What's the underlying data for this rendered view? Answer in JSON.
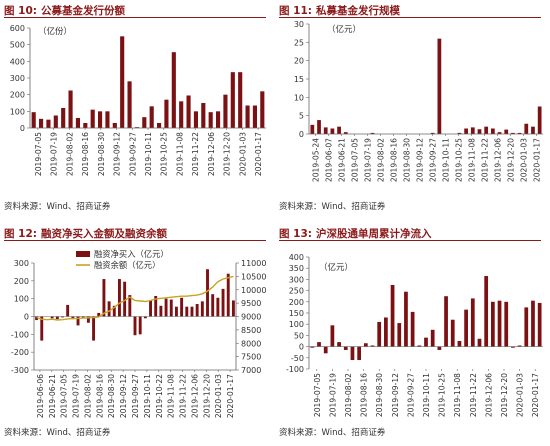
{
  "colors": {
    "bar": "#7b1113",
    "line": "#c9a227",
    "title": "#8b1a1a",
    "axis": "#666666"
  },
  "source_text": "资料来源：Wind、招商证券",
  "panels": [
    {
      "fig": "图 10:",
      "title": "公募基金发行份额"
    },
    {
      "fig": "图 11:",
      "title": "私募基金发行规模"
    },
    {
      "fig": "图 12:",
      "title": "融资净买入金额及融资余额"
    },
    {
      "fig": "图 13:",
      "title": "沪深股通单周累计净流入"
    }
  ],
  "chart_data": [
    {
      "type": "bar",
      "title": "公募基金发行份额",
      "unit_label": "（亿份）",
      "ylim": [
        0,
        600
      ],
      "yticks": [
        "0",
        "100",
        "200",
        "300",
        "400",
        "500",
        "600"
      ],
      "xticks": [
        "2019-07-05",
        "2019-07-19",
        "2019-08-02",
        "2019-08-16",
        "2019-08-30",
        "2019-09-12",
        "2019-09-27",
        "2019-10-11",
        "2019-10-25",
        "2019-11-08",
        "2019-11-22",
        "2019-12-06",
        "2019-12-20",
        "2020-01-03",
        "2020-01-17"
      ],
      "values": [
        95,
        55,
        50,
        75,
        120,
        225,
        60,
        30,
        110,
        100,
        100,
        30,
        550,
        280,
        5,
        65,
        130,
        30,
        170,
        455,
        160,
        195,
        100,
        150,
        95,
        100,
        200,
        335,
        335,
        135,
        135,
        220
      ]
    },
    {
      "type": "bar",
      "title": "私募基金发行规模",
      "unit_label": "（亿元）",
      "ylim": [
        0,
        30
      ],
      "yticks": [
        "0",
        "5",
        "10",
        "15",
        "20",
        "25",
        "30"
      ],
      "xticks": [
        "2019-05-24",
        "2019-06-07",
        "2019-06-21",
        "2019-07-05",
        "2019-07-19",
        "2019-08-02",
        "2019-08-16",
        "2019-08-30",
        "2019-09-12",
        "2019-09-27",
        "2019-10-11",
        "2019-10-25",
        "2019-11-08",
        "2019-11-22",
        "2019-12-06",
        "2019-12-20",
        "2020-01-03",
        "2020-01-17"
      ],
      "values": [
        2.5,
        3.8,
        1.8,
        1.5,
        2.0,
        0.5,
        0,
        0,
        0,
        0.3,
        0,
        0,
        0,
        0,
        0,
        0,
        0,
        0,
        0.3,
        26,
        0,
        0,
        0.3,
        1.5,
        1.8,
        1.3,
        2.0,
        1.5,
        0.5,
        1.2,
        0.3,
        0.3,
        2.8,
        2.0,
        7.5
      ]
    },
    {
      "type": "bar+line",
      "title": "融资净买入金额及融资余额",
      "series": [
        {
          "name": "融资净买入（亿元）",
          "type": "bar",
          "axis": "left",
          "values": [
            -20,
            -135,
            0,
            -10,
            -15,
            -5,
            65,
            -15,
            -50,
            -5,
            -35,
            -135,
            20,
            210,
            85,
            60,
            210,
            195,
            120,
            -105,
            -100,
            -10,
            90,
            115,
            60,
            100,
            95,
            55,
            105,
            55,
            55,
            70,
            85,
            265,
            125,
            105,
            155,
            240,
            90
          ]
        },
        {
          "name": "融资余额（亿元）",
          "type": "line",
          "axis": "right",
          "values": [
            8960,
            8900,
            8880,
            8900,
            8870,
            8880,
            8910,
            8920,
            8930,
            8940,
            8950,
            8960,
            8980,
            9120,
            9200,
            9340,
            9500,
            9600,
            9720,
            9600,
            9580,
            9560,
            9600,
            9650,
            9680,
            9700,
            9720,
            9740,
            9760,
            9760,
            9780,
            9800,
            9850,
            9950,
            10100,
            10300,
            10400,
            10450,
            10500
          ]
        }
      ],
      "ylim_left": [
        -300,
        300
      ],
      "yticks_left": [
        "-300",
        "-200",
        "-100",
        "0",
        "100",
        "200",
        "300"
      ],
      "ylim_right": [
        7000,
        11000
      ],
      "yticks_right": [
        "7000",
        "7500",
        "8000",
        "8500",
        "9000",
        "9500",
        "10000",
        "10500",
        "11000"
      ],
      "xticks": [
        "2019-06-06",
        "2019-06-21",
        "2019-07-05",
        "2019-07-19",
        "2019-08-02",
        "2019-08-16",
        "2019-08-30",
        "2019-09-12",
        "2019-09-27",
        "2019-10-11",
        "2019-10-22",
        "2019-11-08",
        "2019-11-22",
        "2019-12-06",
        "2019-12-20",
        "2020-01-03",
        "2020-01-17"
      ],
      "legend": "top-left"
    },
    {
      "type": "bar",
      "title": "沪深股通单周累计净流入",
      "unit_label": "（亿元）",
      "ylim": [
        -100,
        400
      ],
      "yticks": [
        "-100",
        "-50",
        "0",
        "50",
        "100",
        "150",
        "200",
        "250",
        "300",
        "350",
        "400"
      ],
      "xticks": [
        "2019-07-05",
        "2019-07-19",
        "2019-08-02",
        "2019-08-16",
        "2019-08-30",
        "2019-09-12",
        "2019-09-27",
        "2019-10-11",
        "2019-10-25",
        "2019-11-08",
        "2019-11-22",
        "2019-12-06",
        "2019-12-20",
        "2020-01-03",
        "2020-01-17"
      ],
      "values": [
        -5,
        20,
        -30,
        95,
        20,
        -15,
        -60,
        -60,
        15,
        5,
        110,
        130,
        275,
        105,
        245,
        155,
        5,
        40,
        75,
        -15,
        225,
        120,
        25,
        165,
        215,
        35,
        315,
        200,
        205,
        200,
        -5,
        5,
        175,
        205,
        195
      ]
    }
  ]
}
